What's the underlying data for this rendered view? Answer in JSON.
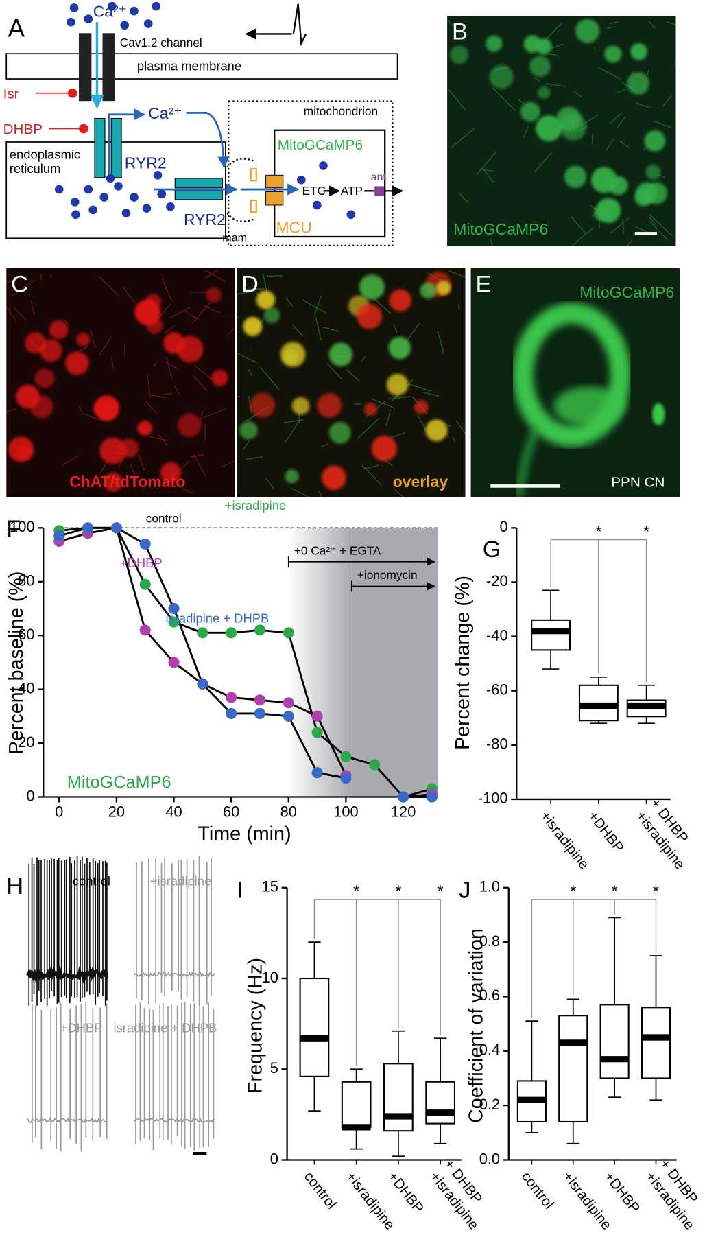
{
  "panel_a": {
    "label": "A",
    "ca_top": "Ca²⁺",
    "channel": "Cav1.2 channel",
    "membrane": "plasma membrane",
    "isr": "Isr",
    "dhbp": "DHBP",
    "er": [
      "endoplasmic",
      "reticulum"
    ],
    "ca_mid": "Ca²⁺",
    "ryr2_a": "RYR2",
    "ryr2_b": "RYR2",
    "mito": "mitochondrion",
    "sensor": "MitoGCaMP6",
    "etc": "ETC",
    "atp": "ATP",
    "ant": "ant",
    "mcu": "MCU",
    "mam": "mam"
  },
  "images": [
    {
      "label": "B",
      "caption": "MitoGCaMP6"
    },
    {
      "label": "C",
      "caption": "ChAT/tdTomato"
    },
    {
      "label": "D",
      "caption": "overlay"
    },
    {
      "label": "E",
      "caption": "MitoGCaMP6",
      "caption2": "PPN CN"
    }
  ],
  "traces": {
    "label": "H",
    "conditions": [
      "control",
      "+isradipine",
      "+DHBP",
      "isradipine + DHPB"
    ]
  },
  "chart_data": [
    {
      "type": "line",
      "label": "F",
      "ylabel": "Percent baseline (%)",
      "xlabel": "Time (min)",
      "annotation": "MitoGCaMP6",
      "reference": {
        "label": "control",
        "value": 100
      },
      "x": [
        0,
        10,
        20,
        30,
        40,
        50,
        60,
        70,
        80,
        90,
        100,
        110,
        120,
        130
      ],
      "line_color": "#000000",
      "series": [
        {
          "name": "+isradipine",
          "color": "#2ca84a",
          "values": [
            99,
            100,
            100,
            79,
            65,
            61,
            61,
            62,
            61,
            24,
            15,
            12,
            0,
            3
          ]
        },
        {
          "name": "+DHBP",
          "color": "#b040b0",
          "values": [
            95,
            98,
            100,
            62,
            50,
            42,
            37,
            36,
            35,
            30,
            8,
            null,
            0,
            1
          ]
        },
        {
          "name": "isradipine + DHPB",
          "color": "#3a68c8",
          "values": [
            97,
            100,
            100,
            94,
            70,
            42,
            31,
            31,
            30,
            9,
            7,
            null,
            0,
            0
          ]
        }
      ],
      "treatments": [
        {
          "label": "+0 Ca²⁺ + EGTA",
          "start": 80
        },
        {
          "label": "+ionomycin",
          "start": 102
        }
      ],
      "xlim": [
        0,
        132
      ],
      "ylim": [
        0,
        100
      ],
      "xticks": [
        0,
        20,
        40,
        60,
        80,
        100,
        120
      ],
      "yticks": [
        0,
        20,
        40,
        60,
        80,
        100
      ]
    },
    {
      "type": "box",
      "label": "G",
      "ylabel": "Percent change (%)",
      "categories": [
        [
          "+isradipine"
        ],
        [
          "+DHBP"
        ],
        [
          "+isradipine",
          "+ DHBP"
        ]
      ],
      "boxes": [
        {
          "min": -52,
          "q1": -45,
          "median": -38,
          "q3": -34,
          "max": -23
        },
        {
          "min": -72,
          "q1": -71,
          "median": -65.5,
          "q3": -58,
          "max": -55
        },
        {
          "min": -72,
          "q1": -69.5,
          "median": -65.5,
          "q3": -63.5,
          "max": -58
        }
      ],
      "significance": [
        null,
        "*",
        "*"
      ],
      "ylim": [
        -100,
        0
      ],
      "yticks": [
        -100,
        -80,
        -60,
        -40,
        -20,
        0
      ]
    },
    {
      "type": "box",
      "label": "I",
      "ylabel": "Frequency (Hz)",
      "categories": [
        [
          "control"
        ],
        [
          "+isradipine"
        ],
        [
          "+DHBP"
        ],
        [
          "+isradipine",
          "+ DHBP"
        ]
      ],
      "boxes": [
        {
          "min": 2.7,
          "q1": 4.6,
          "median": 6.7,
          "q3": 10,
          "max": 12
        },
        {
          "min": 0.6,
          "q1": 1.8,
          "median": 1.8,
          "q3": 4.3,
          "max": 5.0
        },
        {
          "min": 0.2,
          "q1": 1.6,
          "median": 2.4,
          "q3": 5.3,
          "max": 7.1
        },
        {
          "min": 0.9,
          "q1": 2.0,
          "median": 2.6,
          "q3": 4.3,
          "max": 6.7
        }
      ],
      "significance": [
        null,
        "*",
        "*",
        "*"
      ],
      "ylim": [
        0,
        15
      ],
      "yticks": [
        0,
        5,
        10,
        15
      ]
    },
    {
      "type": "box",
      "label": "J",
      "ylabel": "Coefficient of variation",
      "categories": [
        [
          "control"
        ],
        [
          "+isradipine"
        ],
        [
          "+DHBP"
        ],
        [
          "+isradipine",
          "+ DHBP"
        ]
      ],
      "boxes": [
        {
          "min": 0.1,
          "q1": 0.14,
          "median": 0.22,
          "q3": 0.29,
          "max": 0.51
        },
        {
          "min": 0.06,
          "q1": 0.14,
          "median": 0.43,
          "q3": 0.53,
          "max": 0.59
        },
        {
          "min": 0.23,
          "q1": 0.3,
          "median": 0.37,
          "q3": 0.57,
          "max": 0.89
        },
        {
          "min": 0.22,
          "q1": 0.3,
          "median": 0.45,
          "q3": 0.56,
          "max": 0.75
        }
      ],
      "significance": [
        null,
        "*",
        "*",
        "*"
      ],
      "ylim": [
        0,
        1
      ],
      "yticks": [
        {
          "value": 0,
          "label": "0.0"
        },
        0.2,
        0.4,
        0.6,
        0.8,
        {
          "value": 1,
          "label": "1.0"
        }
      ]
    }
  ]
}
